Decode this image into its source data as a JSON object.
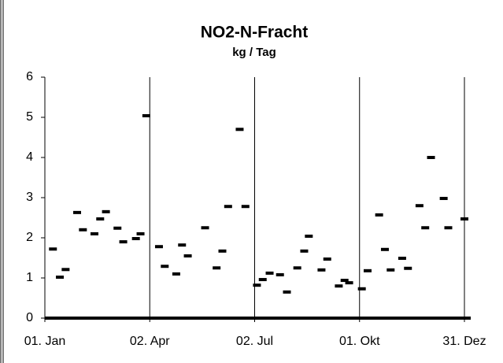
{
  "chart_data": {
    "type": "scatter",
    "title": "NO2-N-Fracht",
    "subtitle": "kg / Tag",
    "color": "#000000",
    "grid": true,
    "xlim": [
      1,
      365
    ],
    "xticks": [
      {
        "value": 1,
        "label": "01. Jan"
      },
      {
        "value": 92,
        "label": "02. Apr"
      },
      {
        "value": 183,
        "label": "02. Jul"
      },
      {
        "value": 274,
        "label": "01. Okt"
      },
      {
        "value": 365,
        "label": "31. Dez"
      }
    ],
    "ylim": [
      0,
      6
    ],
    "yticks": [
      0,
      1,
      2,
      3,
      4,
      5,
      6
    ],
    "x": [
      8,
      14,
      19,
      29,
      34,
      44,
      49,
      54,
      64,
      69,
      80,
      84,
      89,
      100,
      105,
      115,
      120,
      125,
      140,
      150,
      155,
      160,
      170,
      175,
      185,
      190,
      196,
      205,
      211,
      220,
      226,
      230,
      241,
      246,
      256,
      261,
      265,
      276,
      281,
      291,
      296,
      301,
      311,
      316,
      326,
      331,
      336,
      347,
      351,
      365
    ],
    "values": [
      1.72,
      1.02,
      1.21,
      2.63,
      2.2,
      2.1,
      2.47,
      2.65,
      2.24,
      1.9,
      1.98,
      2.1,
      5.04,
      1.78,
      1.29,
      1.1,
      1.82,
      1.55,
      2.25,
      1.25,
      1.67,
      2.78,
      4.7,
      2.78,
      0.82,
      0.96,
      1.12,
      1.08,
      0.65,
      1.25,
      1.67,
      2.04,
      1.2,
      1.47,
      0.8,
      0.94,
      0.88,
      0.73,
      1.18,
      2.57,
      1.71,
      1.2,
      1.49,
      1.24,
      2.8,
      2.25,
      4.0,
      2.98,
      2.25,
      2.47
    ]
  }
}
